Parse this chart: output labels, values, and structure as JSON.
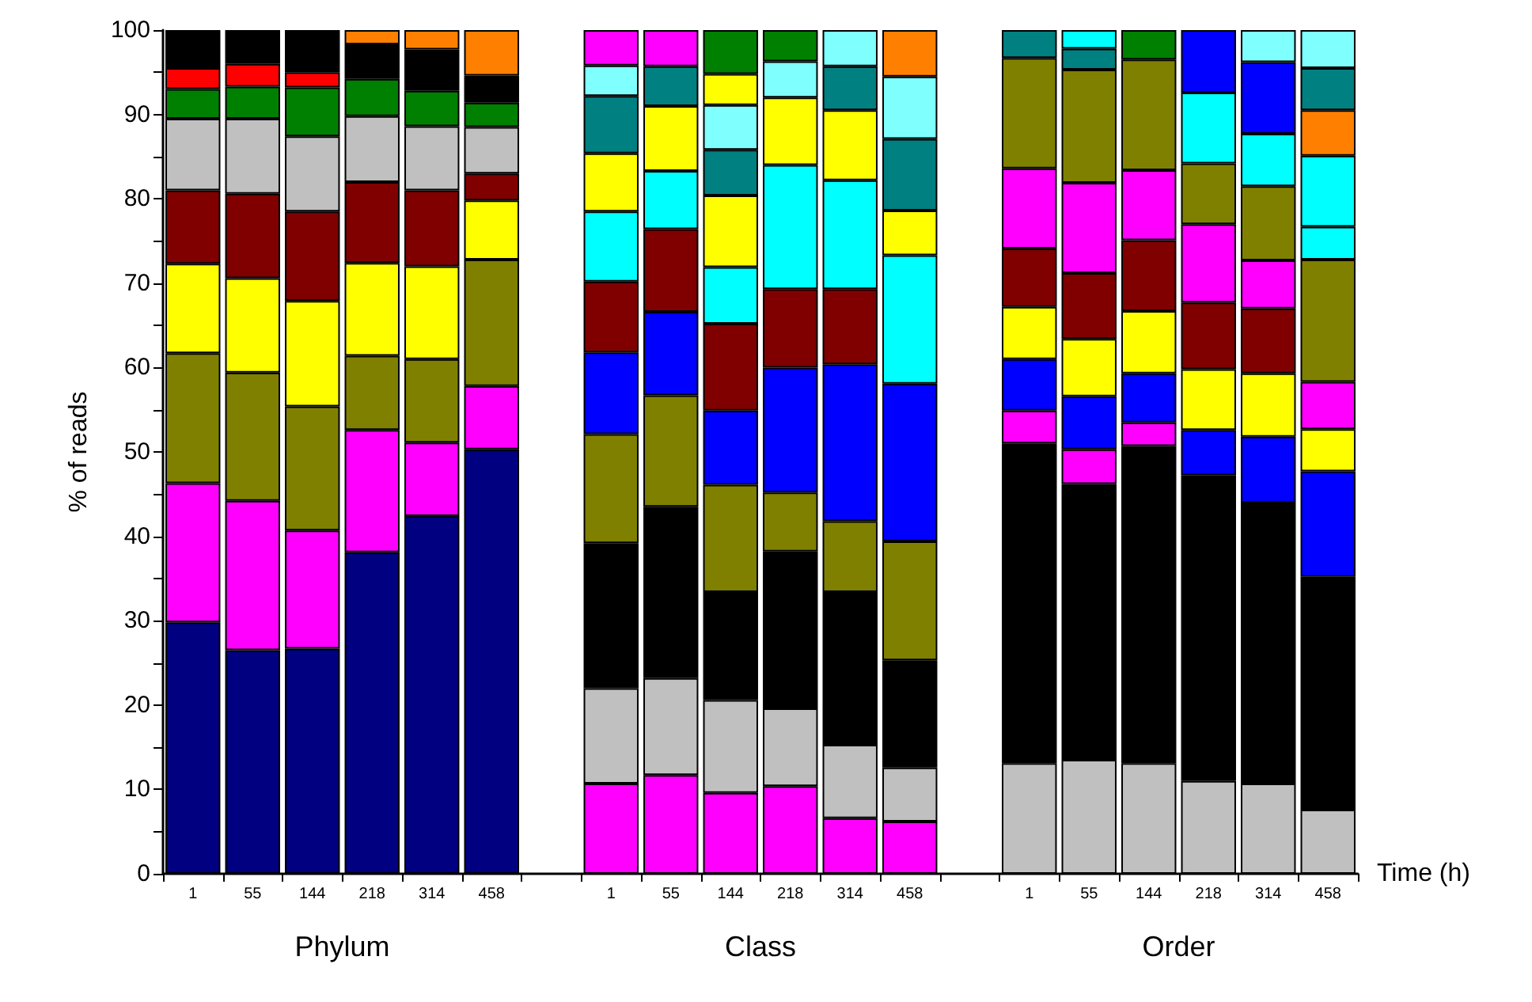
{
  "chart_data": {
    "type": "bar",
    "stacked": true,
    "xlabel": "Time (h)",
    "ylabel": "% of reads",
    "annotations": [
      "Phylum",
      "Class",
      "Order"
    ],
    "categories": [
      "1",
      "55",
      "144",
      "218",
      "314",
      "458",
      null,
      "1",
      "55",
      "144",
      "218",
      "314",
      "458",
      null,
      "1",
      "55",
      "144",
      "218",
      "314",
      "458"
    ],
    "ylim": [
      0,
      100
    ],
    "yticks": [
      0,
      {
        "value": 5,
        "label": null
      },
      10,
      {
        "value": 15,
        "label": null
      },
      20,
      {
        "value": 25,
        "label": null
      },
      30,
      {
        "value": 35,
        "label": null
      },
      40,
      {
        "value": 45,
        "label": null
      },
      50,
      {
        "value": 55,
        "label": null
      },
      60,
      {
        "value": 65,
        "label": null
      },
      70,
      {
        "value": 75,
        "label": null
      },
      80,
      {
        "value": 85,
        "label": null
      },
      90,
      {
        "value": 95,
        "label": null
      },
      100
    ],
    "series": [
      {
        "color": "#000080",
        "values": [
          29.8,
          26.5,
          26.7,
          38.1,
          42.4,
          50.3,
          null,
          null,
          null,
          null,
          null,
          null,
          null,
          null,
          null,
          null,
          null,
          null,
          null,
          null
        ]
      },
      {
        "color": "#ff00ff",
        "values": [
          16.5,
          17.7,
          14.0,
          14.5,
          8.7,
          7.5,
          null,
          null,
          null,
          null,
          null,
          null,
          null,
          null,
          null,
          null,
          null,
          null,
          null,
          null
        ]
      },
      {
        "color": "#808000",
        "values": [
          15.4,
          15.2,
          14.7,
          8.8,
          9.9,
          15.0,
          null,
          null,
          null,
          null,
          null,
          null,
          null,
          null,
          null,
          null,
          null,
          null,
          null,
          null
        ]
      },
      {
        "color": "#ffff00",
        "values": [
          10.6,
          11.2,
          12.5,
          11.0,
          11.0,
          7.0,
          null,
          null,
          null,
          null,
          null,
          null,
          null,
          null,
          null,
          null,
          null,
          null,
          null,
          null
        ]
      },
      {
        "color": "#800000",
        "values": [
          8.7,
          10.0,
          10.6,
          9.6,
          9.0,
          3.2,
          null,
          null,
          null,
          null,
          null,
          null,
          null,
          null,
          null,
          null,
          null,
          null,
          null,
          null
        ]
      },
      {
        "color": "#c0c0c0",
        "values": [
          8.5,
          8.9,
          8.9,
          7.8,
          7.6,
          5.5,
          null,
          null,
          null,
          null,
          null,
          null,
          null,
          null,
          null,
          null,
          null,
          null,
          null,
          null
        ]
      },
      {
        "color": "#008000",
        "values": [
          3.5,
          3.8,
          5.8,
          4.4,
          4.2,
          2.9,
          null,
          null,
          null,
          null,
          null,
          null,
          null,
          null,
          null,
          null,
          null,
          null,
          null,
          null
        ]
      },
      {
        "color": "#ff0000",
        "values": [
          2.5,
          2.7,
          1.8,
          null,
          null,
          null,
          null,
          null,
          null,
          null,
          null,
          null,
          null,
          null,
          null,
          null,
          null,
          null,
          null,
          null
        ]
      },
      {
        "color": "#000000",
        "values": [
          4.5,
          4.0,
          5.0,
          4.1,
          4.9,
          3.2,
          null,
          null,
          null,
          null,
          null,
          null,
          null,
          null,
          null,
          null,
          null,
          null,
          null,
          null
        ]
      },
      {
        "color": "#ff8000",
        "values": [
          null,
          null,
          null,
          1.7,
          2.3,
          5.4,
          null,
          null,
          null,
          null,
          null,
          null,
          null,
          null,
          null,
          null,
          null,
          null,
          null,
          null
        ]
      },
      {
        "color": "#ff00ff",
        "values": [
          null,
          null,
          null,
          null,
          null,
          null,
          null,
          10.7,
          11.7,
          9.6,
          10.4,
          6.6,
          6.2,
          null,
          null,
          null,
          null,
          null,
          null,
          null
        ]
      },
      {
        "color": "#c0c0c0",
        "values": [
          null,
          null,
          null,
          null,
          null,
          null,
          null,
          11.3,
          11.5,
          11.0,
          9.2,
          8.7,
          6.4,
          null,
          null,
          null,
          null,
          null,
          null,
          null
        ]
      },
      {
        "color": "#000000",
        "values": [
          null,
          null,
          null,
          null,
          null,
          null,
          null,
          17.2,
          20.3,
          12.8,
          18.6,
          18.1,
          12.7,
          null,
          null,
          null,
          null,
          null,
          null,
          null
        ]
      },
      {
        "color": "#808000",
        "values": [
          null,
          null,
          null,
          null,
          null,
          null,
          null,
          12.9,
          13.2,
          12.7,
          7.0,
          8.4,
          14.1,
          null,
          null,
          null,
          null,
          null,
          null,
          null
        ]
      },
      {
        "color": "#0000ff",
        "values": [
          null,
          null,
          null,
          null,
          null,
          null,
          null,
          9.7,
          9.9,
          8.8,
          14.8,
          18.6,
          18.7,
          null,
          null,
          null,
          null,
          null,
          null,
          null
        ]
      },
      {
        "color": "#800000",
        "values": [
          null,
          null,
          null,
          null,
          null,
          null,
          null,
          8.4,
          9.8,
          10.3,
          9.3,
          8.9,
          null,
          null,
          null,
          null,
          null,
          null,
          null,
          null
        ]
      },
      {
        "color": "#00ffff",
        "values": [
          null,
          null,
          null,
          null,
          null,
          null,
          null,
          8.3,
          6.9,
          6.7,
          14.7,
          12.9,
          15.2,
          null,
          null,
          null,
          null,
          null,
          null,
          null
        ]
      },
      {
        "color": "#ffff00",
        "values": [
          null,
          null,
          null,
          null,
          null,
          null,
          null,
          6.9,
          7.7,
          8.5,
          8.0,
          8.3,
          5.3,
          null,
          null,
          null,
          null,
          null,
          null,
          null
        ]
      },
      {
        "color": "#008080",
        "values": [
          null,
          null,
          null,
          null,
          null,
          null,
          null,
          6.8,
          4.7,
          5.4,
          null,
          5.2,
          8.5,
          null,
          null,
          null,
          null,
          null,
          null,
          null
        ]
      },
      {
        "color": "#80ffff",
        "values": [
          null,
          null,
          null,
          null,
          null,
          null,
          null,
          3.6,
          null,
          5.3,
          4.3,
          4.3,
          7.4,
          null,
          null,
          null,
          null,
          null,
          null,
          null
        ]
      },
      {
        "color": "#ffff00",
        "values": [
          null,
          null,
          null,
          null,
          null,
          null,
          null,
          null,
          null,
          3.7,
          null,
          null,
          null,
          null,
          null,
          null,
          null,
          null,
          null,
          null
        ]
      },
      {
        "color": "#ff00ff",
        "values": [
          null,
          null,
          null,
          null,
          null,
          null,
          null,
          4.2,
          4.3,
          null,
          null,
          null,
          null,
          null,
          null,
          null,
          null,
          null,
          null,
          null
        ]
      },
      {
        "color": "#008000",
        "values": [
          null,
          null,
          null,
          null,
          null,
          null,
          null,
          null,
          null,
          5.2,
          3.7,
          null,
          null,
          null,
          null,
          null,
          null,
          null,
          null,
          null
        ]
      },
      {
        "color": "#ff8000",
        "values": [
          null,
          null,
          null,
          null,
          null,
          null,
          null,
          null,
          null,
          null,
          null,
          null,
          5.5,
          null,
          null,
          null,
          null,
          null,
          null,
          null
        ]
      },
      {
        "color": "#c0c0c0",
        "values": [
          null,
          null,
          null,
          null,
          null,
          null,
          null,
          null,
          null,
          null,
          null,
          null,
          null,
          null,
          13.1,
          13.5,
          13.1,
          11.0,
          10.7,
          7.6
        ]
      },
      {
        "color": "#000000",
        "values": [
          null,
          null,
          null,
          null,
          null,
          null,
          null,
          null,
          null,
          null,
          null,
          null,
          null,
          null,
          37.9,
          32.7,
          37.6,
          36.2,
          33.3,
          27.6
        ]
      },
      {
        "color": "#ff00ff",
        "values": [
          null,
          null,
          null,
          null,
          null,
          null,
          null,
          null,
          null,
          null,
          null,
          null,
          null,
          null,
          3.9,
          4.1,
          2.8,
          null,
          null,
          null
        ]
      },
      {
        "color": "#0000ff",
        "values": [
          null,
          null,
          null,
          null,
          null,
          null,
          null,
          null,
          null,
          null,
          null,
          null,
          null,
          null,
          6.1,
          6.3,
          5.8,
          5.4,
          7.8,
          12.5
        ]
      },
      {
        "color": "#ffff00",
        "values": [
          null,
          null,
          null,
          null,
          null,
          null,
          null,
          null,
          null,
          null,
          null,
          null,
          null,
          null,
          6.2,
          6.8,
          7.4,
          7.2,
          7.5,
          5.0
        ]
      },
      {
        "color": "#800000",
        "values": [
          null,
          null,
          null,
          null,
          null,
          null,
          null,
          null,
          null,
          null,
          null,
          null,
          null,
          null,
          6.9,
          7.8,
          8.4,
          7.9,
          7.7,
          null
        ]
      },
      {
        "color": "#ff00ff",
        "values": [
          null,
          null,
          null,
          null,
          null,
          null,
          null,
          null,
          null,
          null,
          null,
          null,
          null,
          null,
          9.5,
          10.7,
          8.3,
          9.3,
          5.7,
          5.6
        ]
      },
      {
        "color": "#808000",
        "values": [
          null,
          null,
          null,
          null,
          null,
          null,
          null,
          null,
          null,
          null,
          null,
          null,
          null,
          null,
          13.1,
          13.4,
          13.1,
          7.2,
          8.8,
          14.5
        ]
      },
      {
        "color": "#00ffff",
        "values": [
          null,
          null,
          null,
          null,
          null,
          null,
          null,
          null,
          null,
          null,
          null,
          null,
          null,
          null,
          null,
          null,
          null,
          8.4,
          6.2,
          3.9
        ]
      },
      {
        "color": "#0000ff",
        "values": [
          null,
          null,
          null,
          null,
          null,
          null,
          null,
          null,
          null,
          null,
          null,
          null,
          null,
          null,
          null,
          null,
          null,
          7.4,
          8.5,
          null
        ]
      },
      {
        "color": "#00ffff",
        "values": [
          null,
          null,
          null,
          null,
          null,
          null,
          null,
          null,
          null,
          null,
          null,
          null,
          null,
          null,
          null,
          null,
          null,
          null,
          null,
          8.4
        ]
      },
      {
        "color": "#ff8000",
        "values": [
          null,
          null,
          null,
          null,
          null,
          null,
          null,
          null,
          null,
          null,
          null,
          null,
          null,
          null,
          null,
          null,
          null,
          null,
          null,
          5.4
        ]
      },
      {
        "color": "#008080",
        "values": [
          null,
          null,
          null,
          null,
          null,
          null,
          null,
          null,
          null,
          null,
          null,
          null,
          null,
          null,
          3.3,
          2.5,
          null,
          null,
          null,
          5.0
        ]
      },
      {
        "color": "#00ffff",
        "values": [
          null,
          null,
          null,
          null,
          null,
          null,
          null,
          null,
          null,
          null,
          null,
          null,
          null,
          null,
          null,
          2.2,
          null,
          null,
          null,
          null
        ]
      },
      {
        "color": "#008000",
        "values": [
          null,
          null,
          null,
          null,
          null,
          null,
          null,
          null,
          null,
          null,
          null,
          null,
          null,
          null,
          null,
          null,
          3.5,
          null,
          null,
          null
        ]
      },
      {
        "color": "#80ffff",
        "values": [
          null,
          null,
          null,
          null,
          null,
          null,
          null,
          null,
          null,
          null,
          null,
          null,
          null,
          null,
          null,
          null,
          null,
          null,
          3.8,
          4.5
        ]
      }
    ]
  }
}
